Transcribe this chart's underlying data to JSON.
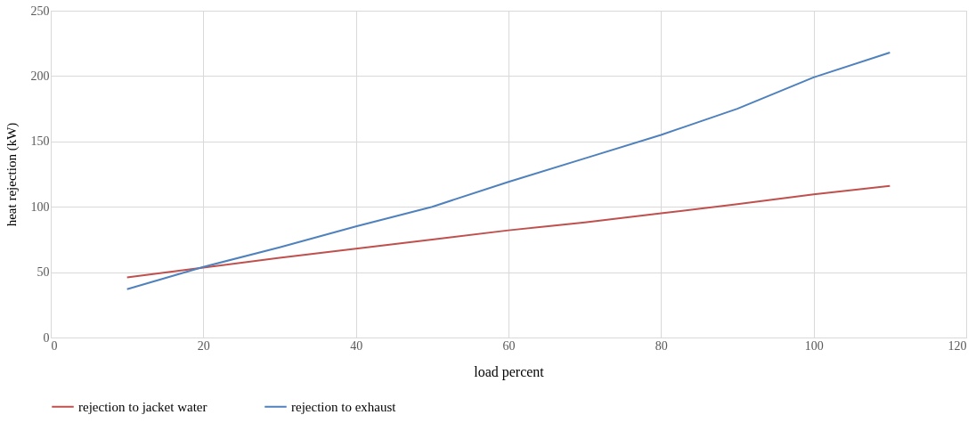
{
  "chart_data": {
    "type": "line",
    "xlabel": "load percent",
    "ylabel": "heat rejection (kW)",
    "x": [
      10,
      20,
      30,
      40,
      50,
      60,
      70,
      80,
      90,
      100,
      110
    ],
    "series": [
      {
        "name": "rejection to jacket water",
        "color": "#c0504d",
        "values": [
          46,
          53.5,
          61,
          68,
          75,
          82,
          88,
          95,
          102,
          109.5,
          116
        ]
      },
      {
        "name": "rejection to exhaust",
        "color": "#4f81bd",
        "values": [
          37,
          54,
          69,
          85,
          100,
          119,
          137,
          155,
          175,
          199,
          218
        ]
      }
    ],
    "xlim": [
      0,
      120
    ],
    "xticks": [
      0,
      20,
      40,
      60,
      80,
      100,
      120
    ],
    "ylim": [
      0,
      250
    ],
    "yticks": [
      0,
      50,
      100,
      150,
      200,
      250
    ],
    "grid": true,
    "legend": "bottom",
    "marker": "none",
    "line_style": "solid"
  }
}
